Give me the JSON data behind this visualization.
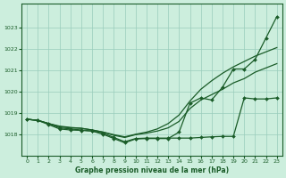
{
  "title": "Graphe pression niveau de la mer (hPa)",
  "background_color": "#cceedd",
  "grid_color": "#99ccbb",
  "line_color": "#1a5c28",
  "xlim": [
    -0.5,
    23.5
  ],
  "ylim": [
    1017.0,
    1024.1
  ],
  "yticks": [
    1018,
    1019,
    1020,
    1021,
    1022,
    1023
  ],
  "xticks": [
    0,
    1,
    2,
    3,
    4,
    5,
    6,
    7,
    8,
    9,
    10,
    11,
    12,
    13,
    14,
    15,
    16,
    17,
    18,
    19,
    20,
    21,
    22,
    23
  ],
  "line_markers_low": [
    1018.7,
    1018.65,
    1018.5,
    1018.3,
    1018.25,
    1018.2,
    1018.15,
    1018.05,
    1017.85,
    1017.65,
    1017.8,
    1017.82,
    1017.82,
    1017.82,
    1017.82,
    1017.82,
    1017.85,
    1017.88,
    1017.9,
    1017.9,
    1019.7,
    1019.65,
    1019.65,
    1019.7
  ],
  "line_markers_high": [
    1018.7,
    1018.65,
    1018.45,
    1018.25,
    1018.2,
    1018.18,
    1018.15,
    1018.0,
    1017.8,
    1017.6,
    1017.78,
    1017.8,
    1017.8,
    1017.8,
    1018.1,
    1019.45,
    1019.7,
    1019.6,
    1020.2,
    1021.05,
    1021.05,
    1021.5,
    1022.5,
    1023.5
  ],
  "line_smooth_mid": [
    1018.7,
    1018.65,
    1018.5,
    1018.35,
    1018.3,
    1018.28,
    1018.2,
    1018.1,
    1017.95,
    1017.85,
    1017.98,
    1018.05,
    1018.15,
    1018.3,
    1018.6,
    1019.2,
    1019.6,
    1019.85,
    1020.1,
    1020.4,
    1020.6,
    1020.9,
    1021.1,
    1021.3
  ],
  "line_smooth_top": [
    1018.7,
    1018.65,
    1018.5,
    1018.38,
    1018.32,
    1018.28,
    1018.2,
    1018.1,
    1017.98,
    1017.88,
    1018.0,
    1018.1,
    1018.25,
    1018.5,
    1018.9,
    1019.55,
    1020.1,
    1020.5,
    1020.85,
    1021.15,
    1021.4,
    1021.65,
    1021.85,
    1022.05
  ]
}
